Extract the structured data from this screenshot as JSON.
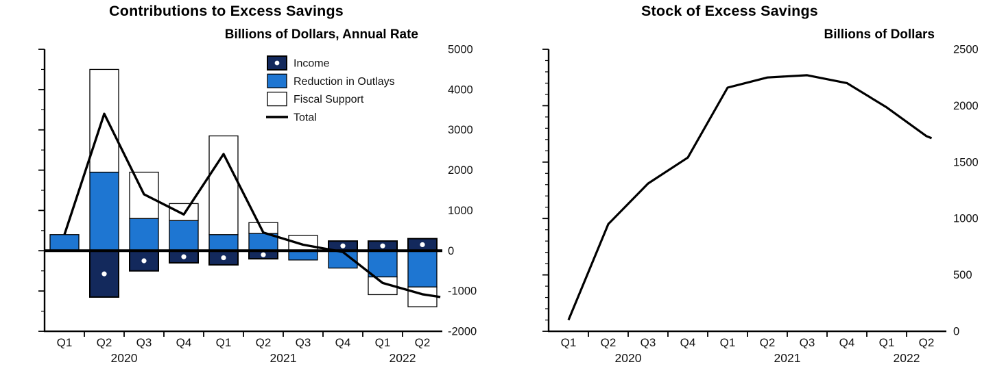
{
  "chart_data": [
    {
      "type": "bar",
      "title": "Contributions to Excess Savings",
      "subtitle": "Billions of Dollars, Annual Rate",
      "categories": [
        "Q1",
        "Q2",
        "Q3",
        "Q4",
        "Q1",
        "Q2",
        "Q3",
        "Q4",
        "Q1",
        "Q2"
      ],
      "year_labels": [
        {
          "label": "2020",
          "start": 0,
          "end": 3
        },
        {
          "label": "2021",
          "start": 4,
          "end": 7
        },
        {
          "label": "2022",
          "start": 8,
          "end": 9
        }
      ],
      "ylim": [
        -2000,
        5000
      ],
      "yticks": [
        5000,
        4000,
        3000,
        2000,
        1000,
        0,
        -1000,
        -2000
      ],
      "ytick_major": 1000,
      "ytick_minor": 500,
      "grid": false,
      "legend_position": "top-right-inside",
      "series": [
        {
          "name": "Income",
          "type": "bar",
          "color": "#13295c",
          "marker": "white-dot",
          "label_color": "#13295c",
          "values": [
            0,
            -1150,
            -500,
            -300,
            -350,
            -200,
            0,
            240,
            240,
            300
          ]
        },
        {
          "name": "Reduction in Outlays",
          "type": "bar",
          "color": "#1e76d2",
          "label_color": "#1e76d2",
          "values": [
            400,
            1950,
            800,
            750,
            400,
            430,
            -230,
            -430,
            -650,
            -900
          ]
        },
        {
          "name": "Fiscal Support",
          "type": "bar",
          "color": "#ffffff",
          "label_color": "#1a1a1a",
          "values": [
            0,
            2550,
            1150,
            420,
            2450,
            270,
            380,
            0,
            -440,
            -490
          ]
        },
        {
          "name": "Total",
          "type": "line",
          "color": "#000000",
          "label_color": "#1a1a1a",
          "values": [
            400,
            3400,
            1400,
            900,
            2400,
            450,
            150,
            -30,
            -800,
            -1080
          ]
        }
      ]
    },
    {
      "type": "line",
      "title": "Stock of Excess Savings",
      "subtitle": "Billions of Dollars",
      "categories": [
        "Q1",
        "Q2",
        "Q3",
        "Q4",
        "Q1",
        "Q2",
        "Q3",
        "Q4",
        "Q1",
        "Q2"
      ],
      "year_labels": [
        {
          "label": "2020",
          "start": 0,
          "end": 3
        },
        {
          "label": "2021",
          "start": 4,
          "end": 7
        },
        {
          "label": "2022",
          "start": 8,
          "end": 9
        }
      ],
      "ylim": [
        0,
        2500
      ],
      "yticks": [
        2500,
        2000,
        1500,
        1000,
        500,
        0
      ],
      "ytick_major": 500,
      "ytick_minor": 100,
      "grid": false,
      "series": [
        {
          "name": "Stock of Excess Savings",
          "type": "line",
          "color": "#000000",
          "values": [
            100,
            950,
            1310,
            1540,
            2160,
            2250,
            2270,
            2200,
            1985,
            1730
          ]
        }
      ]
    }
  ]
}
